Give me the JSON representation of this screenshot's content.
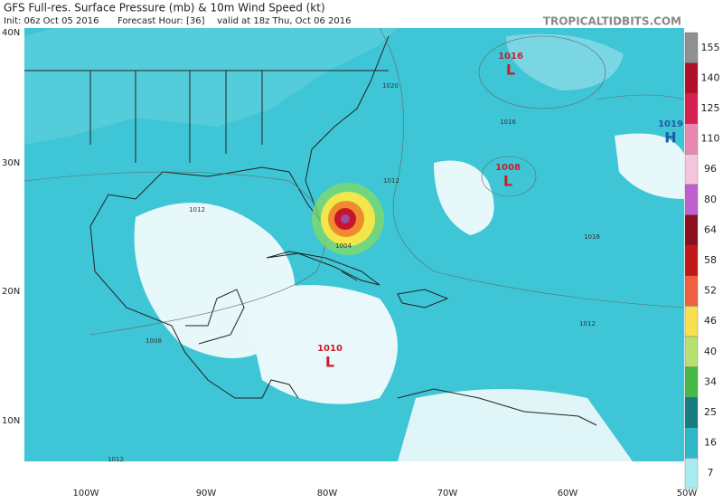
{
  "header": {
    "title": "GFS Full-res. Surface Pressure (mb) & 10m Wind Speed (kt)",
    "site": "TROPICALTIDBITS.COM",
    "init": "Init: 06z Oct 05 2016",
    "forecast_hour": "Forecast Hour: [36]",
    "valid": "valid at 18z Thu, Oct 06 2016"
  },
  "map": {
    "lat_labels": [
      "40N",
      "30N",
      "20N",
      "10N"
    ],
    "lon_labels": [
      "100W",
      "90W",
      "80W",
      "70W",
      "60W",
      "50W"
    ],
    "centers": [
      {
        "pressure": "1016",
        "type": "L"
      },
      {
        "pressure": "1019",
        "type": "H"
      },
      {
        "pressure": "1008",
        "type": "L"
      },
      {
        "pressure": "1010",
        "type": "L"
      }
    ],
    "isobar_labels": [
      "1020",
      "1016",
      "1012",
      "1012",
      "1016",
      "1004",
      "1012",
      "1008",
      "1012"
    ]
  },
  "colorbar": {
    "labels": [
      155,
      140,
      125,
      110,
      96,
      80,
      64,
      58,
      52,
      46,
      40,
      34,
      25,
      16,
      7
    ]
  }
}
